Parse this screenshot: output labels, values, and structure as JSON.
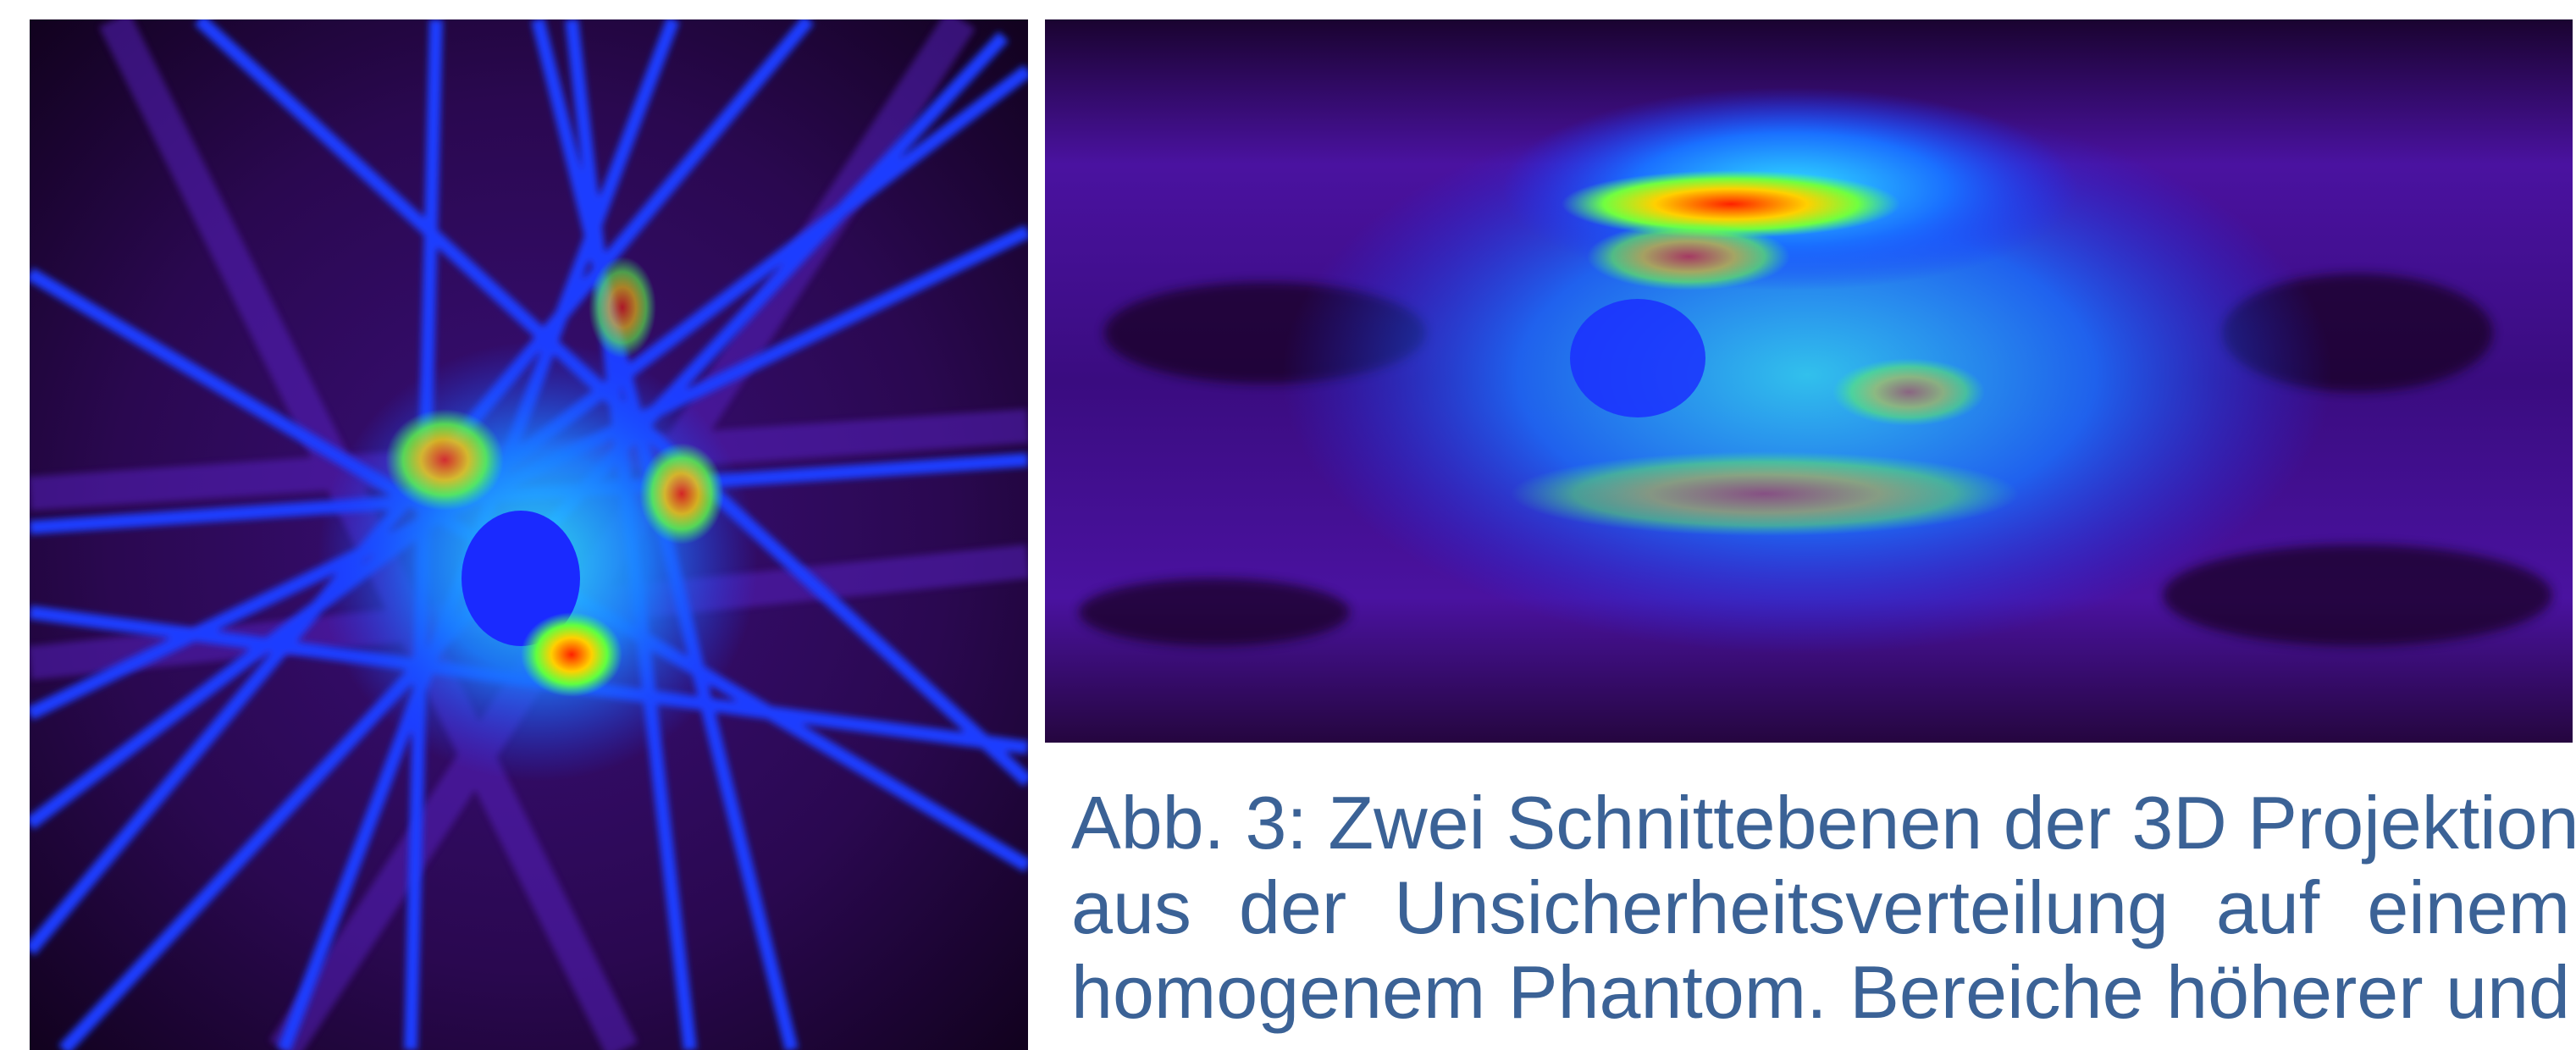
{
  "caption": {
    "lines": [
      "Abb. 3: Zwei Schnittebenen der 3D Projektion",
      "aus der Unsicherheitsverteilung auf einem",
      "homogenem Phantom. Bereiche höherer und"
    ]
  }
}
